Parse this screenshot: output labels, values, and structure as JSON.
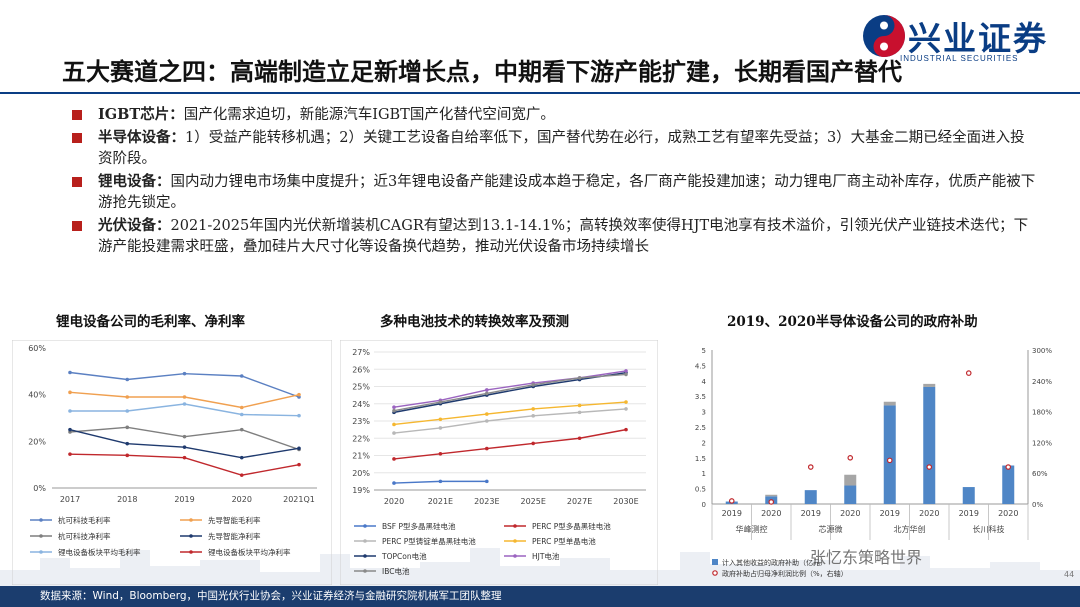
{
  "logo": {
    "name": "兴业证券",
    "sub": "INDUSTRIAL SECURITIES"
  },
  "title": "五大赛道之四：高端制造立足新增长点，中期看下游产能扩建，长期看国产替代",
  "bullets": [
    {
      "head": "IGBT芯片：",
      "text": "国产化需求迫切，新能源汽车IGBT国产化替代空间宽广。"
    },
    {
      "head": "半导体设备：",
      "text": "1）受益产能转移机遇；2）关键工艺设备自给率低下，国产替代势在必行，成熟工艺有望率先受益；3）大基金二期已经全面进入投资阶段。"
    },
    {
      "head": "锂电设备：",
      "text": "国内动力锂电市场集中度提升；近3年锂电设备产能建设成本趋于稳定，各厂商产能投建加速；动力锂电厂商主动补库存，优质产能被下游抢先锁定。"
    },
    {
      "head": "光伏设备：",
      "text": "2021-2025年国内光伏新增装机CAGR有望达到13.1-14.1%；高转换效率使得HJT电池享有技术溢价，引领光伏产业链技术迭代；下游产能投建需求旺盛，叠加硅片大尺寸化等设备换代趋势，推动光伏设备市场持续增长"
    }
  ],
  "chart_titles": [
    "锂电设备公司的毛利率、净利率",
    "多种电池技术的转换效率及预测",
    "2019、2020半导体设备公司的政府补助"
  ],
  "chart_data": [
    {
      "type": "line",
      "title": "锂电设备公司的毛利率、净利率",
      "categories": [
        "2017",
        "2018",
        "2019",
        "2020",
        "2021Q1"
      ],
      "ylim": [
        0,
        60
      ],
      "yticks": [
        "0%",
        "20%",
        "40%",
        "60%"
      ],
      "series": [
        {
          "name": "杭可科技毛利率",
          "color": "#5b80c2",
          "values": [
            49.5,
            46.5,
            49,
            48,
            39
          ]
        },
        {
          "name": "先导智能毛利率",
          "color": "#f0a050",
          "values": [
            41,
            39,
            39,
            34.5,
            40
          ]
        },
        {
          "name": "杭可科技净利率",
          "color": "#7f7f7f",
          "values": [
            24,
            26,
            22,
            25,
            16.5
          ]
        },
        {
          "name": "先导智能净利率",
          "color": "#1f3a6e",
          "values": [
            25,
            19,
            17.5,
            13,
            17
          ]
        },
        {
          "name": "锂电设备板块平均毛利率",
          "color": "#8ab4e0",
          "values": [
            33,
            33,
            36,
            31.5,
            31
          ]
        },
        {
          "name": "锂电设备板块平均净利率",
          "color": "#c0282d",
          "values": [
            14.5,
            14,
            13,
            5.5,
            10
          ]
        }
      ]
    },
    {
      "type": "line",
      "title": "多种电池技术的转换效率及预测",
      "categories": [
        "2020",
        "2021E",
        "2023E",
        "2025E",
        "2027E",
        "2030E"
      ],
      "ylim": [
        19,
        27
      ],
      "yticks": [
        "19%",
        "20%",
        "21%",
        "22%",
        "23%",
        "24%",
        "25%",
        "26%",
        "27%"
      ],
      "series": [
        {
          "name": "BSF P型多晶黑硅电池",
          "color": "#4a78c8",
          "values": [
            19.4,
            19.5,
            19.5,
            null,
            null,
            null
          ]
        },
        {
          "name": "PERC P型多晶黑硅电池",
          "color": "#c0282d",
          "values": [
            20.8,
            21.1,
            21.4,
            21.7,
            22.0,
            22.5
          ]
        },
        {
          "name": "PERC P型铸锭单晶黑硅电池",
          "color": "#b8b8b8",
          "values": [
            22.3,
            22.6,
            23.0,
            23.3,
            23.5,
            23.7
          ]
        },
        {
          "name": "PERC P型单晶电池",
          "color": "#f5b730",
          "values": [
            22.8,
            23.1,
            23.4,
            23.7,
            23.9,
            24.1
          ]
        },
        {
          "name": "TOPCon电池",
          "color": "#1f3a6e",
          "values": [
            23.5,
            24.0,
            24.5,
            25.0,
            25.4,
            25.8
          ]
        },
        {
          "name": "HJT电池",
          "color": "#9b64c0",
          "values": [
            23.8,
            24.2,
            24.8,
            25.2,
            25.5,
            25.9
          ]
        },
        {
          "name": "IBC电池",
          "color": "#8a8a8a",
          "values": [
            23.6,
            24.1,
            24.6,
            25.1,
            25.5,
            25.7
          ]
        }
      ]
    },
    {
      "type": "bar",
      "title": "2019、2020半导体设备公司的政府补助",
      "categories": [
        "2019",
        "2020",
        "2019",
        "2020",
        "2019",
        "2020",
        "2019",
        "2020"
      ],
      "groups": [
        "华峰测控",
        "芯源微",
        "北方华创",
        "长川科技"
      ],
      "ylim": [
        0,
        5
      ],
      "yticks": [
        "0",
        "0.5",
        "1",
        "1.5",
        "2",
        "2.5",
        "3",
        "3.5",
        "4",
        "4.5",
        "5"
      ],
      "y2lim": [
        0,
        300
      ],
      "y2ticks": [
        "0%",
        "60%",
        "120%",
        "180%",
        "240%",
        "300%"
      ],
      "series": [
        {
          "name": "计入其他收益的政府补助（亿元）",
          "color": "#4f86c6",
          "values": [
            0.08,
            0.25,
            0.45,
            0.6,
            3.2,
            3.8,
            0.55,
            1.25
          ]
        },
        {
          "name": "政府补助占归母净利润比例（%，右轴）",
          "color": "#c0282d",
          "values": [
            6,
            4,
            72,
            90,
            85,
            72,
            255,
            72
          ]
        }
      ],
      "grey_caps": [
        0,
        0.05,
        0,
        0.35,
        0.12,
        0.1,
        0,
        0
      ]
    }
  ],
  "watermark": "张忆东策略世界",
  "page_number": "44",
  "footer": "数据来源：Wind，Bloomberg，中国光伏行业协会，兴业证券经济与金融研究院机械军工团队整理"
}
